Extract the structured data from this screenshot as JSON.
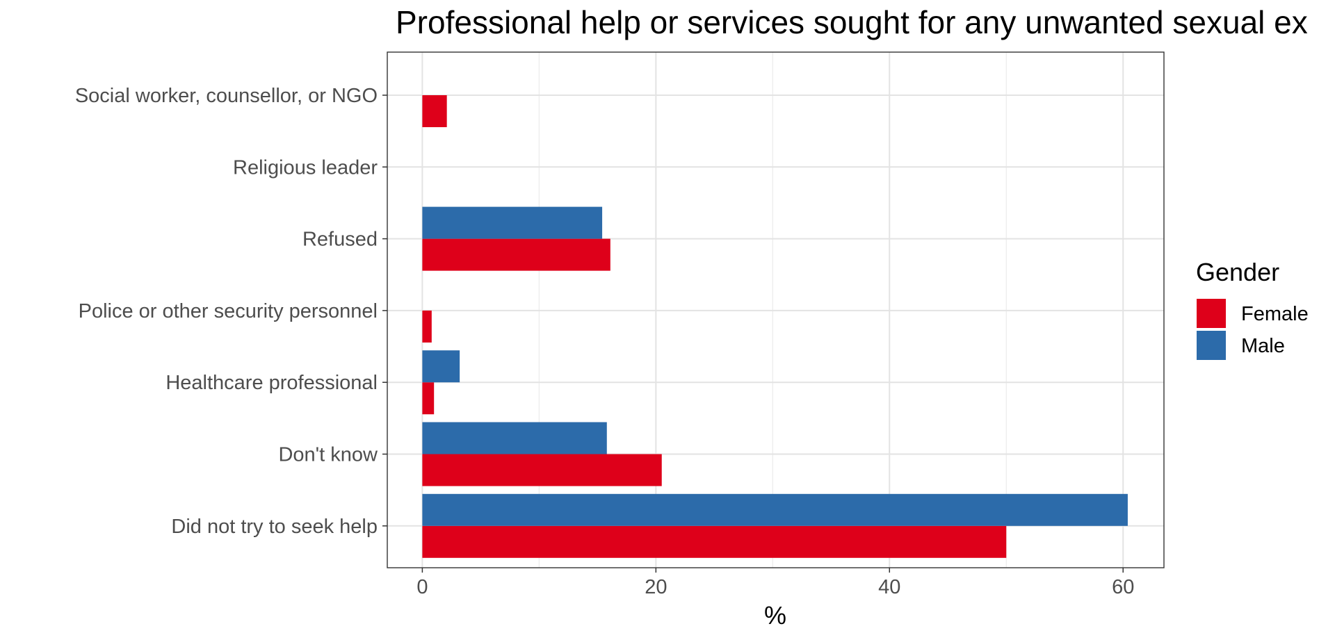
{
  "chart_data": {
    "type": "bar",
    "orientation": "horizontal",
    "title": "Professional help or services sought for any unwanted sexual ex",
    "xlabel": "%",
    "ylabel": "",
    "categories": [
      "Social worker, counsellor, or NGO",
      "Religious leader",
      "Refused",
      "Police or other security personnel",
      "Healthcare professional",
      "Don't know",
      "Did not try to seek help"
    ],
    "series": [
      {
        "name": "Female",
        "color": "#DE001A",
        "values": [
          2.1,
          0,
          16.1,
          0.8,
          1.0,
          20.5,
          50.0
        ]
      },
      {
        "name": "Male",
        "color": "#2C6BAA",
        "values": [
          0,
          0,
          15.4,
          0,
          3.2,
          15.8,
          60.4
        ]
      }
    ],
    "xlim": [
      -3,
      63.5
    ],
    "xticks": [
      0,
      20,
      40,
      60
    ],
    "grid": true,
    "legend": {
      "title": "Gender",
      "position": "right"
    }
  }
}
